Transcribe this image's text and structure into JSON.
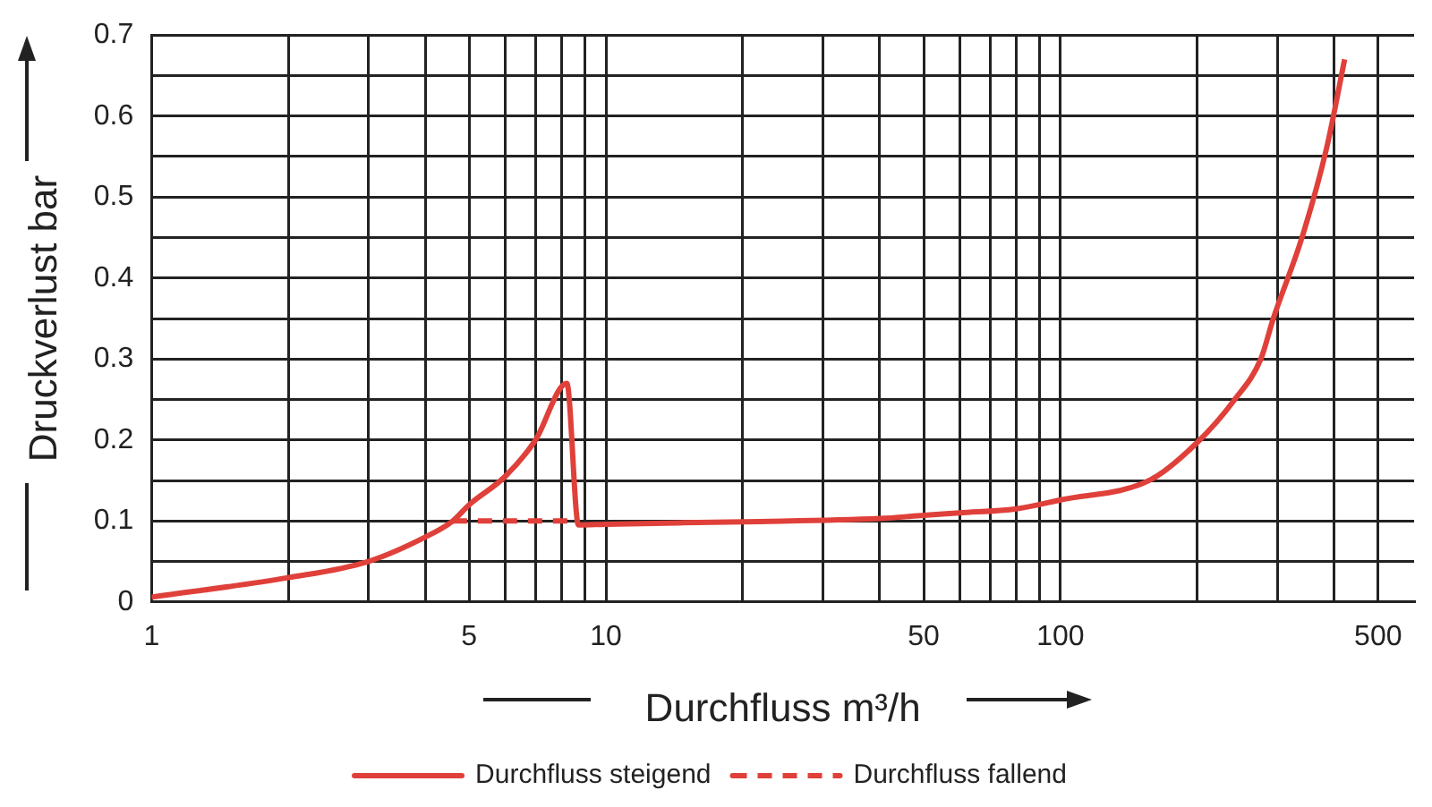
{
  "chart_data": {
    "type": "line",
    "xlabel": "Durchfluss m³/h",
    "ylabel": "Druckverlust bar",
    "log": "x",
    "grid": true,
    "legend": "bottom",
    "xlim": [
      1,
      600
    ],
    "ylim": [
      0,
      0.7
    ],
    "xticks": [
      1,
      {
        "value": 2,
        "label": null
      },
      {
        "value": 3,
        "label": null
      },
      {
        "value": 4,
        "label": null
      },
      5,
      {
        "value": 6,
        "label": null
      },
      {
        "value": 7,
        "label": null
      },
      {
        "value": 8,
        "label": null
      },
      {
        "value": 9,
        "label": null
      },
      10,
      {
        "value": 20,
        "label": null
      },
      {
        "value": 30,
        "label": null
      },
      {
        "value": 40,
        "label": null
      },
      50,
      {
        "value": 60,
        "label": null
      },
      {
        "value": 70,
        "label": null
      },
      {
        "value": 80,
        "label": null
      },
      {
        "value": 90,
        "label": null
      },
      100,
      {
        "value": 200,
        "label": null
      },
      {
        "value": 300,
        "label": null
      },
      {
        "value": 400,
        "label": null
      },
      500
    ],
    "yticks": [
      0,
      {
        "value": 0.05,
        "label": null
      },
      0.1,
      {
        "value": 0.15,
        "label": null
      },
      0.2,
      {
        "value": 0.25,
        "label": null
      },
      0.3,
      {
        "value": 0.35,
        "label": null
      },
      0.4,
      {
        "value": 0.45,
        "label": null
      },
      0.5,
      {
        "value": 0.55,
        "label": null
      },
      0.6,
      {
        "value": 0.65,
        "label": null
      },
      0.7
    ],
    "series": [
      {
        "name": "Durchfluss steigend",
        "color": "#e0403a",
        "line_style": "solid",
        "x": [
          1,
          2,
          3,
          4,
          4.6,
          5,
          6,
          7,
          8.2,
          8.7,
          10,
          20,
          40,
          50,
          60,
          80,
          100,
          158,
          200,
          241,
          276,
          294,
          340,
          385,
          422
        ],
        "values": [
          0.006,
          0.03,
          0.05,
          0.08,
          0.1,
          0.12,
          0.155,
          0.2,
          0.27,
          0.095,
          0.096,
          0.099,
          0.103,
          0.107,
          0.11,
          0.115,
          0.126,
          0.151,
          0.197,
          0.249,
          0.3,
          0.35,
          0.45,
          0.56,
          0.67
        ]
      },
      {
        "name": "Durchfluss fallend",
        "color": "#e0403a",
        "line_style": "dashed",
        "x": [
          4.6,
          8.6
        ],
        "values": [
          0.1,
          0.1
        ]
      }
    ]
  }
}
